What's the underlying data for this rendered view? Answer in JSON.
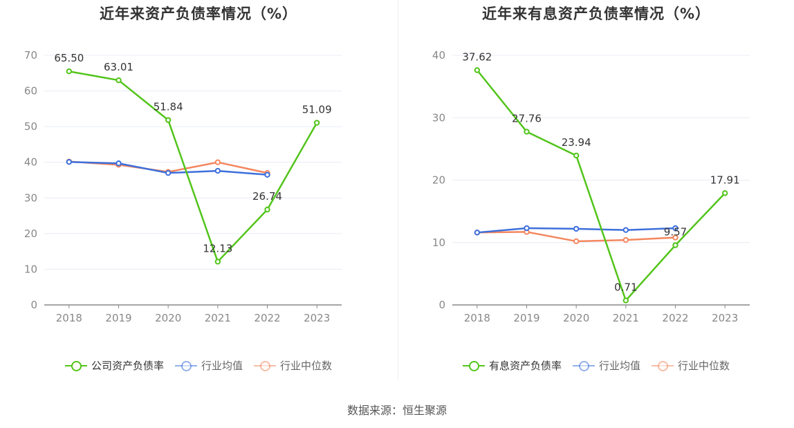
{
  "chart_data": [
    {
      "type": "line",
      "title": "近年来资产负债率情况（%）",
      "categories": [
        "2018",
        "2019",
        "2020",
        "2021",
        "2022",
        "2023"
      ],
      "ylim": [
        0,
        70
      ],
      "yticks": [
        0,
        10,
        20,
        30,
        40,
        50,
        60,
        70
      ],
      "grid": true,
      "legend_position": "bottom",
      "series": [
        {
          "name": "公司资产负债率",
          "color": "#52c41a",
          "values": [
            65.5,
            63.01,
            51.84,
            12.13,
            26.74,
            51.09
          ],
          "labels": [
            "65.50",
            "63.01",
            "51.84",
            "12.13",
            "26.74",
            "51.09"
          ]
        },
        {
          "name": "行业均值",
          "color": "#3d6fdb",
          "values": [
            40.1,
            39.7,
            37.0,
            37.6,
            36.5,
            null
          ]
        },
        {
          "name": "行业中位数",
          "color": "#f4865e",
          "values": [
            40.2,
            39.3,
            37.3,
            40.0,
            37.0,
            null
          ]
        }
      ]
    },
    {
      "type": "line",
      "title": "近年来有息资产负债率情况（%）",
      "categories": [
        "2018",
        "2019",
        "2020",
        "2021",
        "2022",
        "2023"
      ],
      "ylim": [
        0,
        40
      ],
      "yticks": [
        0,
        10,
        20,
        30,
        40
      ],
      "grid": true,
      "legend_position": "bottom",
      "series": [
        {
          "name": "有息资产负债率",
          "color": "#52c41a",
          "values": [
            37.62,
            27.76,
            23.94,
            0.71,
            9.57,
            17.91
          ],
          "labels": [
            "37.62",
            "27.76",
            "23.94",
            "0.71",
            "9.57",
            "17.91"
          ]
        },
        {
          "name": "行业均值",
          "color": "#3d6fdb",
          "values": [
            11.6,
            12.3,
            12.2,
            12.0,
            12.3,
            null
          ]
        },
        {
          "name": "行业中位数",
          "color": "#f4865e",
          "values": [
            11.6,
            11.7,
            10.2,
            10.4,
            10.8,
            null
          ]
        }
      ]
    }
  ],
  "source": "数据来源：恒生聚源"
}
